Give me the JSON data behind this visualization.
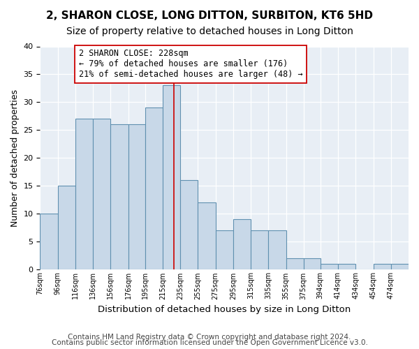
{
  "title1": "2, SHARON CLOSE, LONG DITTON, SURBITON, KT6 5HD",
  "title2": "Size of property relative to detached houses in Long Ditton",
  "xlabel": "Distribution of detached houses by size in Long Ditton",
  "ylabel": "Number of detached properties",
  "bins": [
    "76sqm",
    "96sqm",
    "116sqm",
    "136sqm",
    "156sqm",
    "176sqm",
    "195sqm",
    "215sqm",
    "235sqm",
    "255sqm",
    "275sqm",
    "295sqm",
    "315sqm",
    "335sqm",
    "355sqm",
    "375sqm",
    "394sqm",
    "414sqm",
    "434sqm",
    "454sqm",
    "474sqm"
  ],
  "heights": [
    10,
    15,
    27,
    27,
    26,
    26,
    29,
    33,
    16,
    12,
    7,
    9,
    7,
    7,
    2,
    2,
    1,
    1,
    0,
    1,
    1
  ],
  "bar_color": "#c8d8e8",
  "bar_edge_color": "#6090b0",
  "bin_edges": [
    76,
    96,
    116,
    136,
    156,
    176,
    195,
    215,
    235,
    255,
    275,
    295,
    315,
    335,
    355,
    375,
    394,
    414,
    434,
    454,
    474,
    494
  ],
  "property_value": 228,
  "vline_color": "#cc0000",
  "annotation_text": "2 SHARON CLOSE: 228sqm\n← 79% of detached houses are smaller (176)\n21% of semi-detached houses are larger (48) →",
  "annotation_box_color": "#ffffff",
  "annotation_box_edge": "#cc0000",
  "ylim": [
    0,
    40
  ],
  "yticks": [
    0,
    5,
    10,
    15,
    20,
    25,
    30,
    35,
    40
  ],
  "background_color": "#e8eef5",
  "grid_color": "#ffffff",
  "footer1": "Contains HM Land Registry data © Crown copyright and database right 2024.",
  "footer2": "Contains public sector information licensed under the Open Government Licence v3.0.",
  "title1_fontsize": 11,
  "title2_fontsize": 10,
  "xlabel_fontsize": 9.5,
  "ylabel_fontsize": 9,
  "annotation_fontsize": 8.5,
  "footer_fontsize": 7.5
}
